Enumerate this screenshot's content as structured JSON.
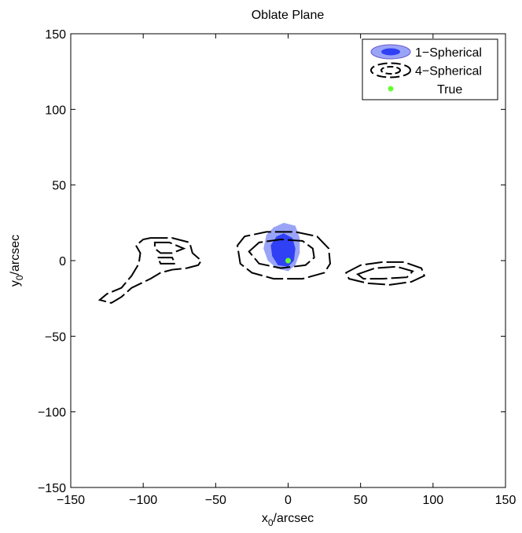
{
  "chart_data": {
    "type": "contour",
    "title": "Oblate Plane",
    "xlabel": [
      "x",
      "0",
      "/arcsec"
    ],
    "ylabel": [
      "y",
      "0",
      "/arcsec"
    ],
    "xlim": [
      -150,
      150
    ],
    "ylim": [
      -150,
      150
    ],
    "xticks": [
      {
        "value": -150,
        "label": "−150"
      },
      {
        "value": -100,
        "label": "−100"
      },
      {
        "value": -50,
        "label": "−50"
      },
      0,
      50,
      100,
      150
    ],
    "yticks": [
      {
        "value": -150,
        "label": "−150"
      },
      {
        "value": -100,
        "label": "−100"
      },
      {
        "value": -50,
        "label": "−50"
      },
      0,
      50,
      100,
      150
    ],
    "legend": "northeast",
    "series": [
      {
        "name": "1−Spherical",
        "style": "filled",
        "colors": [
          "#9aa4f7",
          "#2f40f5"
        ],
        "contours": [
          {
            "x": [
              -3,
              5,
              8,
              8,
              5,
              0,
              -8,
              -14,
              -17,
              -15,
              -10
            ],
            "y": [
              25,
              23,
              15,
              5,
              -3,
              -7,
              -5,
              0,
              8,
              17,
              22
            ]
          },
          {
            "x": [
              -3,
              3,
              5,
              4,
              0,
              -7,
              -11,
              -12,
              -8
            ],
            "y": [
              18,
              15,
              8,
              0,
              -4,
              -3,
              3,
              10,
              16
            ]
          }
        ]
      },
      {
        "name": "4−Spherical",
        "style": "dashed",
        "colors": [
          "#000000",
          "#000000"
        ],
        "contours": [
          {
            "x": [
              -35,
              -30,
              -15,
              5,
              20,
              28,
              29,
              25,
              10,
              -10,
              -25,
              -33
            ],
            "y": [
              10,
              16,
              19,
              19,
              16,
              8,
              -2,
              -8,
              -12,
              -12,
              -8,
              -2
            ]
          },
          {
            "x": [
              -27,
              -20,
              -5,
              10,
              17,
              18,
              12,
              -5,
              -20
            ],
            "y": [
              6,
              12,
              14,
              13,
              8,
              2,
              -3,
              -5,
              -2
            ]
          },
          {
            "x": [
              -95,
              -80,
              -68,
              -66,
              -60,
              -62,
              -70,
              -80,
              -88,
              -95,
              -108,
              -115,
              -122,
              -130,
              -125,
              -115,
              -108,
              -103,
              -102,
              -105,
              -100
            ],
            "y": [
              15,
              15,
              12,
              5,
              0,
              -3,
              -5,
              -6,
              -8,
              -12,
              -18,
              -24,
              -28,
              -26,
              -22,
              -18,
              -10,
              -2,
              5,
              10,
              14
            ]
          },
          {
            "x": [
              -92,
              -82,
              -72,
              -80,
              -88,
              -92
            ],
            "y": [
              12,
              12,
              8,
              5,
              5,
              8
            ]
          },
          {
            "x": [
              -90,
              -80,
              -78,
              -88
            ],
            "y": [
              2,
              2,
              -2,
              -2
            ]
          },
          {
            "x": [
              40,
              50,
              65,
              80,
              92,
              94,
              85,
              70,
              55,
              42
            ],
            "y": [
              -8,
              -3,
              -1,
              -1,
              -5,
              -10,
              -14,
              -16,
              -15,
              -12
            ]
          },
          {
            "x": [
              48,
              60,
              75,
              86,
              82,
              65,
              52
            ],
            "y": [
              -9,
              -5,
              -4,
              -7,
              -11,
              -12,
              -12
            ]
          }
        ]
      },
      {
        "name": "True",
        "color": "#66ff33",
        "x": [
          0
        ],
        "y": [
          0
        ]
      }
    ]
  }
}
